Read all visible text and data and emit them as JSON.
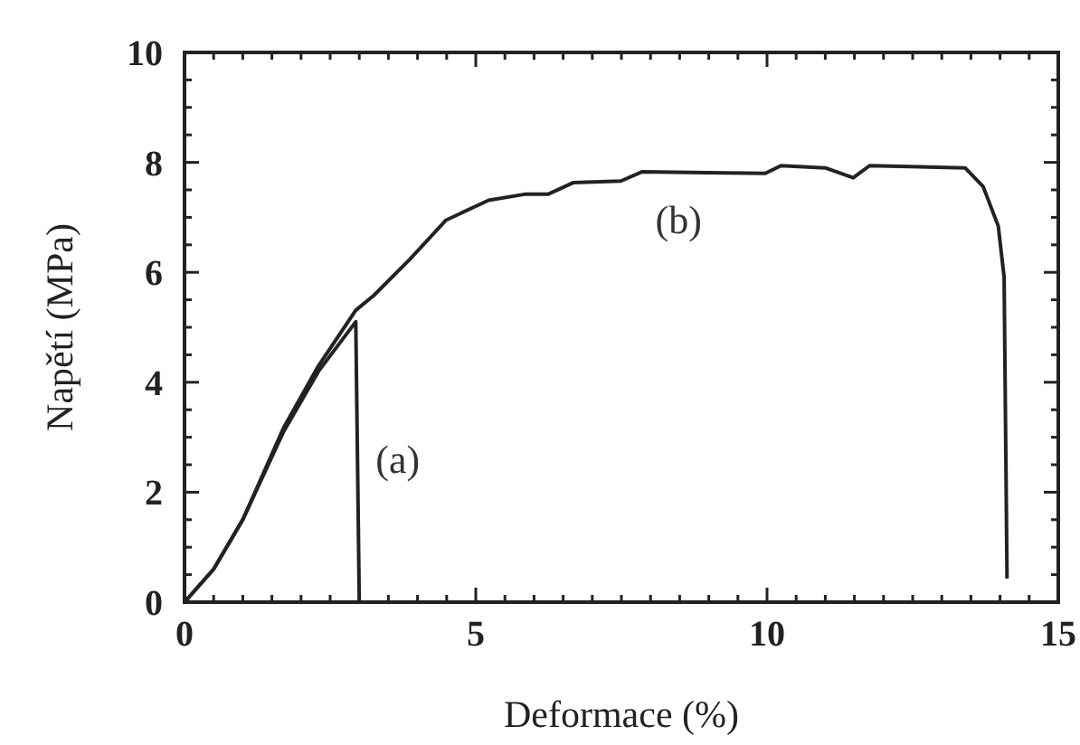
{
  "chart_data": {
    "type": "line",
    "xlabel": "Deformace (%)",
    "ylabel": "Napětí (MPa)",
    "xlim": [
      0,
      15
    ],
    "ylim": [
      0,
      10
    ],
    "xticks": [
      0,
      {
        "value": 0.5,
        "label": null
      },
      {
        "value": 1,
        "label": null
      },
      {
        "value": 1.5,
        "label": null
      },
      {
        "value": 2,
        "label": null
      },
      {
        "value": 2.5,
        "label": null
      },
      {
        "value": 3,
        "label": null
      },
      {
        "value": 3.5,
        "label": null
      },
      {
        "value": 4,
        "label": null
      },
      {
        "value": 4.5,
        "label": null
      },
      5,
      {
        "value": 5.5,
        "label": null
      },
      {
        "value": 6,
        "label": null
      },
      {
        "value": 6.5,
        "label": null
      },
      {
        "value": 7,
        "label": null
      },
      {
        "value": 7.5,
        "label": null
      },
      {
        "value": 8,
        "label": null
      },
      {
        "value": 8.5,
        "label": null
      },
      {
        "value": 9,
        "label": null
      },
      {
        "value": 9.5,
        "label": null
      },
      10,
      {
        "value": 10.5,
        "label": null
      },
      {
        "value": 11,
        "label": null
      },
      {
        "value": 11.5,
        "label": null
      },
      {
        "value": 12,
        "label": null
      },
      {
        "value": 12.5,
        "label": null
      },
      {
        "value": 13,
        "label": null
      },
      {
        "value": 13.5,
        "label": null
      },
      {
        "value": 14,
        "label": null
      },
      {
        "value": 14.5,
        "label": null
      },
      15
    ],
    "yticks": [
      0,
      {
        "value": 0.5,
        "label": null
      },
      {
        "value": 1,
        "label": null
      },
      {
        "value": 1.5,
        "label": null
      },
      2,
      {
        "value": 2.5,
        "label": null
      },
      {
        "value": 3,
        "label": null
      },
      {
        "value": 3.5,
        "label": null
      },
      4,
      {
        "value": 4.5,
        "label": null
      },
      {
        "value": 5,
        "label": null
      },
      {
        "value": 5.5,
        "label": null
      },
      6,
      {
        "value": 6.5,
        "label": null
      },
      {
        "value": 7,
        "label": null
      },
      {
        "value": 7.5,
        "label": null
      },
      8,
      {
        "value": 8.5,
        "label": null
      },
      {
        "value": 9,
        "label": null
      },
      {
        "value": 9.5,
        "label": null
      },
      10
    ],
    "grid": false,
    "marker": "none",
    "line_style": "solid",
    "series": [
      {
        "name": "(a)",
        "color": "#222222",
        "x": [
          0,
          0.5,
          1.0,
          1.7,
          2.3,
          2.94,
          3.0
        ],
        "values": [
          0,
          0.6,
          1.5,
          3.1,
          4.2,
          5.1,
          0
        ]
      },
      {
        "name": "(b)",
        "color": "#222222",
        "x": [
          0,
          0.5,
          1.0,
          1.7,
          2.3,
          2.94,
          3.25,
          3.87,
          4.49,
          5.22,
          5.84,
          6.24,
          6.67,
          7.49,
          7.86,
          9.97,
          10.24,
          11.0,
          11.48,
          11.76,
          13.4,
          13.71,
          13.97,
          14.07,
          14.12
        ],
        "values": [
          0,
          0.6,
          1.5,
          3.17,
          4.3,
          5.31,
          5.58,
          6.24,
          6.95,
          7.31,
          7.42,
          7.42,
          7.63,
          7.66,
          7.83,
          7.8,
          7.94,
          7.9,
          7.72,
          7.94,
          7.9,
          7.56,
          6.84,
          5.91,
          0.43
        ]
      }
    ]
  }
}
